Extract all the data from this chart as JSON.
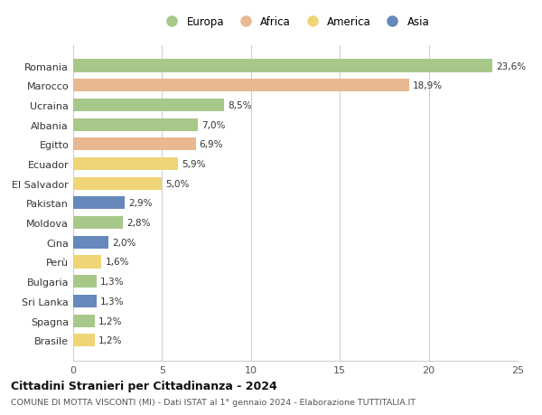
{
  "countries": [
    "Brasile",
    "Spagna",
    "Sri Lanka",
    "Bulgaria",
    "Perù",
    "Cina",
    "Moldova",
    "Pakistan",
    "El Salvador",
    "Ecuador",
    "Egitto",
    "Albania",
    "Ucraina",
    "Marocco",
    "Romania"
  ],
  "values": [
    1.2,
    1.2,
    1.3,
    1.3,
    1.6,
    2.0,
    2.8,
    2.9,
    5.0,
    5.9,
    6.9,
    7.0,
    8.5,
    18.9,
    23.6
  ],
  "labels": [
    "1,2%",
    "1,2%",
    "1,3%",
    "1,3%",
    "1,6%",
    "2,0%",
    "2,8%",
    "2,9%",
    "5,0%",
    "5,9%",
    "6,9%",
    "7,0%",
    "8,5%",
    "18,9%",
    "23,6%"
  ],
  "continents": [
    "America",
    "Europa",
    "Asia",
    "Europa",
    "America",
    "Asia",
    "Europa",
    "Asia",
    "America",
    "America",
    "Africa",
    "Europa",
    "Europa",
    "Africa",
    "Europa"
  ],
  "continent_colors": {
    "Europa": "#a8c88a",
    "Africa": "#e8b890",
    "America": "#f0d478",
    "Asia": "#6688bb"
  },
  "legend_items": [
    "Europa",
    "Africa",
    "America",
    "Asia"
  ],
  "legend_colors": [
    "#a8c88a",
    "#e8b890",
    "#f0d478",
    "#6688bb"
  ],
  "title": "Cittadini Stranieri per Cittadinanza - 2024",
  "subtitle": "COMUNE DI MOTTA VISCONTI (MI) - Dati ISTAT al 1° gennaio 2024 - Elaborazione TUTTITALIA.IT",
  "xlim": [
    0,
    25
  ],
  "xticks": [
    0,
    5,
    10,
    15,
    20,
    25
  ],
  "background_color": "#ffffff",
  "grid_color": "#cccccc",
  "bar_height": 0.65
}
